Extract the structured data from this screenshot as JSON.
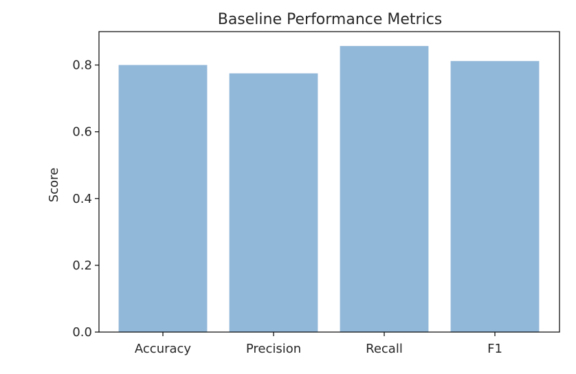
{
  "chart_data": {
    "type": "bar",
    "title": "Baseline Performance Metrics",
    "xlabel": "",
    "ylabel": "Score",
    "categories": [
      "Accuracy",
      "Precision",
      "Recall",
      "F1"
    ],
    "values": [
      0.8,
      0.775,
      0.857,
      0.812
    ],
    "ylim": [
      0,
      0.9
    ],
    "yticks": [
      "0.0",
      "0.2",
      "0.4",
      "0.6",
      "0.8"
    ],
    "bar_color": "#92b8d9",
    "grid": false,
    "legend": "none"
  }
}
